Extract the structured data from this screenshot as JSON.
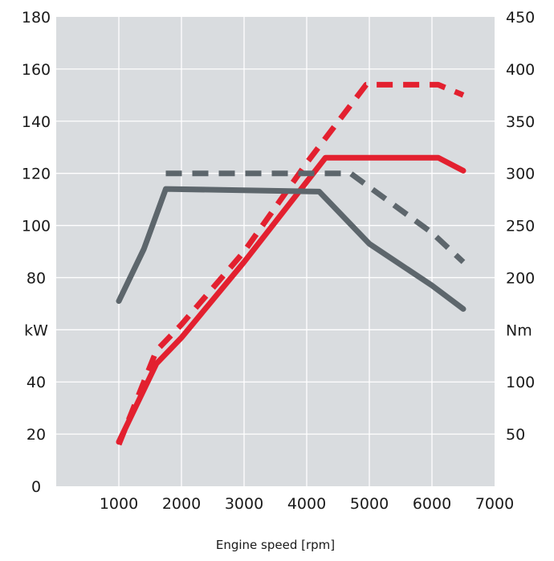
{
  "chart_data": {
    "type": "line",
    "xlabel": "Engine speed [rpm]",
    "y_left_label": "kW",
    "y_right_label": "Nm",
    "x_ticks": [
      "1000",
      "2000",
      "3000",
      "4000",
      "5000",
      "6000",
      "7000"
    ],
    "y_left_ticks": [
      "0",
      "20",
      "40",
      "kW",
      "80",
      "100",
      "120",
      "140",
      "160",
      "180"
    ],
    "y_right_ticks": [
      "50",
      "100",
      "Nm",
      "200",
      "250",
      "300",
      "350",
      "400",
      "450"
    ],
    "xlim": [
      0,
      7000
    ],
    "ylim_left": [
      0,
      180
    ],
    "ylim_right": [
      0,
      450
    ],
    "grid": true,
    "background_color": "#d9dcdf",
    "series": [
      {
        "axis": "left",
        "color": "#e3202f",
        "dash": false,
        "x": [
          1000,
          1600,
          2000,
          3000,
          4300,
          6100,
          6500
        ],
        "values": [
          17,
          47,
          57,
          86,
          126,
          126,
          121
        ]
      },
      {
        "axis": "right",
        "color": "#e3202f",
        "dash": true,
        "x": [
          1000,
          1400,
          1600,
          2000,
          3000,
          4000,
          4950,
          6100,
          6500
        ],
        "values": [
          40,
          100,
          130,
          155,
          225,
          310,
          385,
          385,
          375
        ]
      },
      {
        "axis": "left",
        "color": "#5d666c",
        "dash": false,
        "x": [
          1000,
          1400,
          1750,
          4200,
          5000,
          6000,
          6500
        ],
        "values": [
          71,
          91,
          114,
          113,
          93,
          77,
          68
        ]
      },
      {
        "axis": "right",
        "color": "#5d666c",
        "dash": true,
        "x": [
          1750,
          4700,
          6000,
          6500
        ],
        "values": [
          300,
          300,
          243,
          215
        ]
      }
    ]
  }
}
